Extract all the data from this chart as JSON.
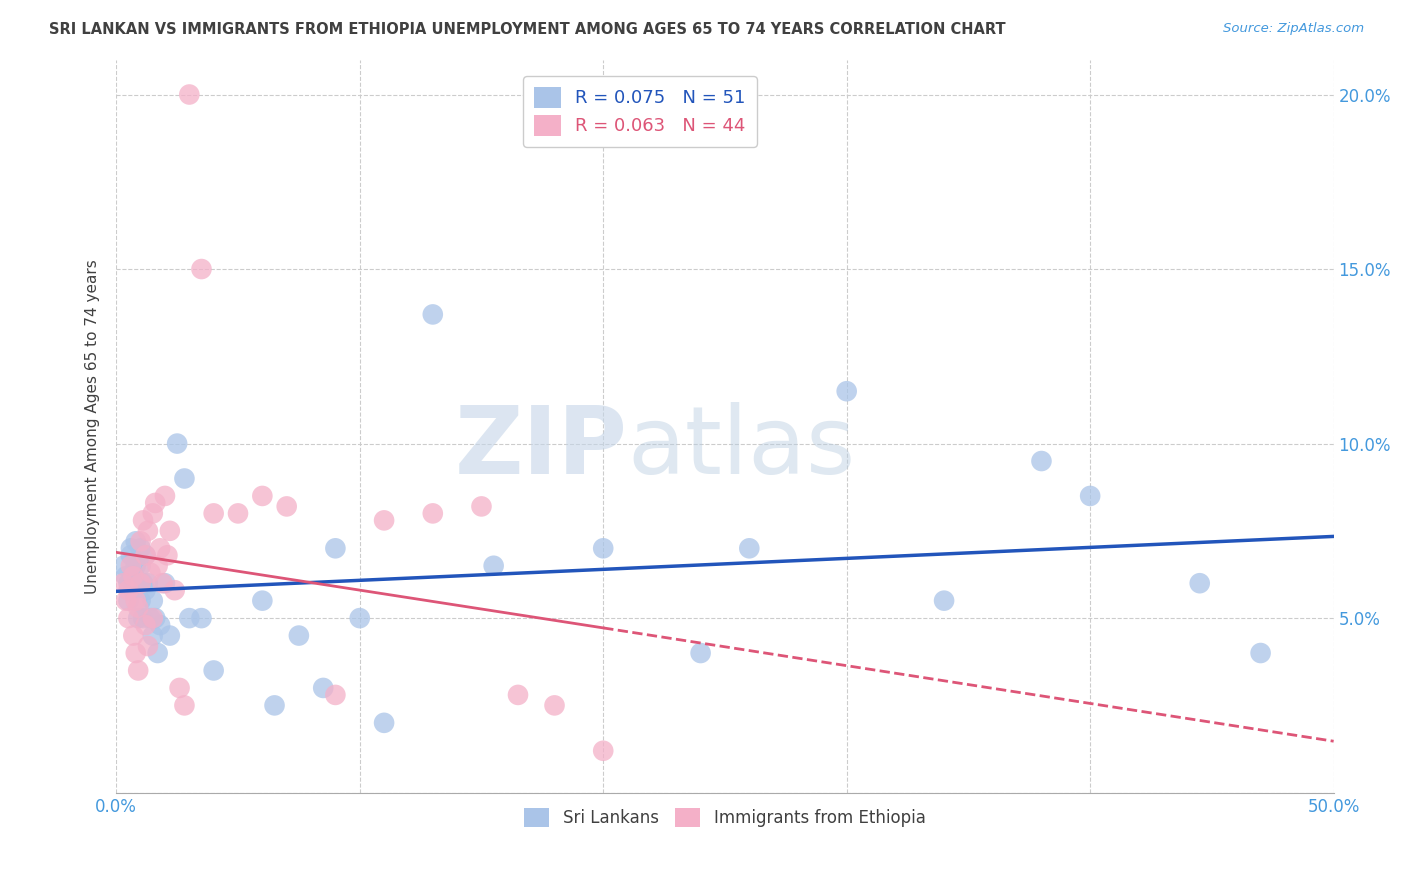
{
  "title": "SRI LANKAN VS IMMIGRANTS FROM ETHIOPIA UNEMPLOYMENT AMONG AGES 65 TO 74 YEARS CORRELATION CHART",
  "source": "Source: ZipAtlas.com",
  "ylabel": "Unemployment Among Ages 65 to 74 years",
  "xlim": [
    0.0,
    0.5
  ],
  "ylim": [
    0.0,
    0.21
  ],
  "xticks": [
    0.0,
    0.1,
    0.2,
    0.3,
    0.4,
    0.5
  ],
  "xticklabels": [
    "0.0%",
    "",
    "",
    "",
    "",
    "50.0%"
  ],
  "yticks_left": [
    0.0,
    0.05,
    0.1,
    0.15,
    0.2
  ],
  "yticks_right": [
    0.05,
    0.1,
    0.15,
    0.2
  ],
  "yticklabels_right": [
    "5.0%",
    "10.0%",
    "15.0%",
    "20.0%"
  ],
  "sri_lanka_R": 0.075,
  "sri_lanka_N": 51,
  "ethiopia_R": 0.063,
  "ethiopia_N": 44,
  "sri_lanka_color": "#aac4e8",
  "ethiopia_color": "#f4b0c8",
  "sri_lanka_line_color": "#2255bb",
  "ethiopia_line_color": "#dd5577",
  "background_color": "#ffffff",
  "grid_color": "#cccccc",
  "title_color": "#404040",
  "axis_color": "#4499dd",
  "legend_text_color": "#2255bb",
  "legend_ethiopia_color": "#dd5577",
  "sri_lankans_x": [
    0.003,
    0.004,
    0.005,
    0.005,
    0.006,
    0.006,
    0.007,
    0.007,
    0.008,
    0.008,
    0.009,
    0.009,
    0.01,
    0.01,
    0.01,
    0.011,
    0.011,
    0.012,
    0.012,
    0.013,
    0.014,
    0.015,
    0.015,
    0.016,
    0.017,
    0.018,
    0.02,
    0.022,
    0.025,
    0.028,
    0.03,
    0.035,
    0.04,
    0.06,
    0.065,
    0.075,
    0.085,
    0.09,
    0.1,
    0.11,
    0.13,
    0.155,
    0.2,
    0.24,
    0.26,
    0.3,
    0.34,
    0.38,
    0.4,
    0.445,
    0.47
  ],
  "sri_lankans_y": [
    0.065,
    0.062,
    0.06,
    0.055,
    0.068,
    0.07,
    0.063,
    0.058,
    0.065,
    0.072,
    0.05,
    0.06,
    0.055,
    0.065,
    0.07,
    0.06,
    0.05,
    0.058,
    0.068,
    0.06,
    0.05,
    0.055,
    0.045,
    0.05,
    0.04,
    0.048,
    0.06,
    0.045,
    0.1,
    0.09,
    0.05,
    0.05,
    0.035,
    0.055,
    0.025,
    0.045,
    0.03,
    0.07,
    0.05,
    0.02,
    0.137,
    0.065,
    0.07,
    0.04,
    0.07,
    0.115,
    0.055,
    0.095,
    0.085,
    0.06,
    0.04
  ],
  "ethiopia_x": [
    0.003,
    0.004,
    0.005,
    0.005,
    0.006,
    0.007,
    0.007,
    0.008,
    0.008,
    0.009,
    0.009,
    0.01,
    0.01,
    0.011,
    0.012,
    0.012,
    0.013,
    0.013,
    0.014,
    0.015,
    0.015,
    0.016,
    0.017,
    0.018,
    0.019,
    0.02,
    0.021,
    0.022,
    0.024,
    0.026,
    0.028,
    0.03,
    0.035,
    0.04,
    0.05,
    0.06,
    0.07,
    0.09,
    0.11,
    0.13,
    0.15,
    0.165,
    0.18,
    0.2
  ],
  "ethiopia_y": [
    0.06,
    0.055,
    0.058,
    0.05,
    0.065,
    0.062,
    0.045,
    0.055,
    0.04,
    0.053,
    0.035,
    0.06,
    0.072,
    0.078,
    0.048,
    0.068,
    0.075,
    0.042,
    0.063,
    0.05,
    0.08,
    0.083,
    0.065,
    0.07,
    0.06,
    0.085,
    0.068,
    0.075,
    0.058,
    0.03,
    0.025,
    0.2,
    0.15,
    0.08,
    0.08,
    0.085,
    0.082,
    0.028,
    0.078,
    0.08,
    0.082,
    0.028,
    0.025,
    0.012
  ]
}
